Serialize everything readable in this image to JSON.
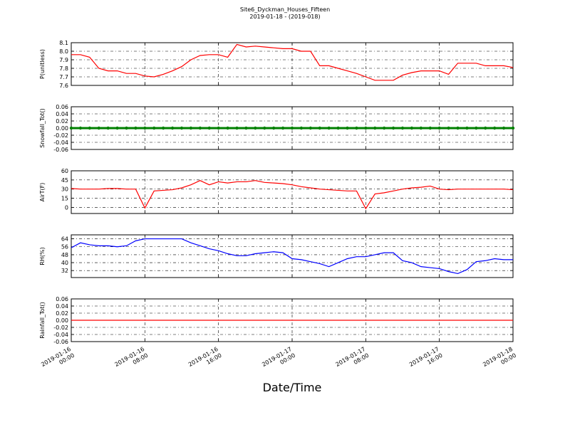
{
  "chart_data": [
    {
      "type": "line",
      "title": "Site6_Dyckman_Houses_Fifteen",
      "subtitle": "2019-01-18 - (2019-018)",
      "ylabel": "P(unitless)",
      "color": "#ff0000",
      "grid": true,
      "xlim": [
        "2019-01-16 00:00",
        "2019-01-18 00:00"
      ],
      "ylim": [
        7.6,
        8.1
      ],
      "yticks": [
        7.6,
        7.7,
        7.8,
        7.9,
        {
          "value": 8,
          "label": "8.0"
        },
        8.1
      ],
      "x": [
        "2019-01-16 00:00",
        "2019-01-16 01:00",
        "2019-01-16 02:00",
        "2019-01-16 03:00",
        "2019-01-16 04:00",
        "2019-01-16 05:00",
        "2019-01-16 06:00",
        "2019-01-16 07:00",
        "2019-01-16 08:00",
        "2019-01-16 09:00",
        "2019-01-16 10:00",
        "2019-01-16 11:00",
        "2019-01-16 12:00",
        "2019-01-16 13:00",
        "2019-01-16 14:00",
        "2019-01-16 15:00",
        "2019-01-16 16:00",
        "2019-01-16 17:00",
        "2019-01-16 18:00",
        "2019-01-16 19:00",
        "2019-01-16 20:00",
        "2019-01-16 21:00",
        "2019-01-16 22:00",
        "2019-01-16 23:00",
        "2019-01-17 00:00",
        "2019-01-17 01:00",
        "2019-01-17 02:00",
        "2019-01-17 03:00",
        "2019-01-17 04:00",
        "2019-01-17 05:00",
        "2019-01-17 06:00",
        "2019-01-17 07:00",
        "2019-01-17 08:00",
        "2019-01-17 09:00",
        "2019-01-17 10:00",
        "2019-01-17 11:00",
        "2019-01-17 12:00",
        "2019-01-17 13:00",
        "2019-01-17 14:00",
        "2019-01-17 15:00",
        "2019-01-17 16:00",
        "2019-01-17 17:00",
        "2019-01-17 18:00",
        "2019-01-17 19:00",
        "2019-01-17 20:00",
        "2019-01-17 21:00",
        "2019-01-17 22:00",
        "2019-01-17 23:00",
        "2019-01-18 00:00"
      ],
      "values": [
        7.96,
        7.96,
        7.93,
        7.8,
        7.77,
        7.77,
        7.74,
        7.74,
        7.71,
        7.7,
        7.73,
        7.77,
        7.82,
        7.9,
        7.95,
        7.96,
        7.96,
        7.93,
        8.08,
        8.05,
        8.06,
        8.05,
        8.04,
        8.03,
        8.03,
        8.0,
        8.0,
        7.83,
        7.83,
        7.8,
        7.77,
        7.74,
        7.7,
        7.66,
        7.66,
        7.66,
        7.72,
        7.75,
        7.77,
        7.77,
        7.77,
        7.73,
        7.86,
        7.86,
        7.86,
        7.83,
        7.83,
        7.83,
        7.81
      ]
    },
    {
      "type": "line",
      "ylabel": "Snowfall_Tot()",
      "color": "#008000",
      "marker": true,
      "grid": true,
      "xlim": [
        "2019-01-16 00:00",
        "2019-01-18 00:00"
      ],
      "ylim": [
        -0.06,
        0.06
      ],
      "yticks": [
        -0.06,
        -0.04,
        -0.02,
        {
          "value": 0,
          "label": "0.00"
        },
        0.02,
        0.04,
        0.06
      ],
      "x": [
        "2019-01-16 00:00",
        "2019-01-16 01:00",
        "2019-01-16 02:00",
        "2019-01-16 03:00",
        "2019-01-16 04:00",
        "2019-01-16 05:00",
        "2019-01-16 06:00",
        "2019-01-16 07:00",
        "2019-01-16 08:00",
        "2019-01-16 09:00",
        "2019-01-16 10:00",
        "2019-01-16 11:00",
        "2019-01-16 12:00",
        "2019-01-16 13:00",
        "2019-01-16 14:00",
        "2019-01-16 15:00",
        "2019-01-16 16:00",
        "2019-01-16 17:00",
        "2019-01-16 18:00",
        "2019-01-16 19:00",
        "2019-01-16 20:00",
        "2019-01-16 21:00",
        "2019-01-16 22:00",
        "2019-01-16 23:00",
        "2019-01-17 00:00",
        "2019-01-17 01:00",
        "2019-01-17 02:00",
        "2019-01-17 03:00",
        "2019-01-17 04:00",
        "2019-01-17 05:00",
        "2019-01-17 06:00",
        "2019-01-17 07:00",
        "2019-01-17 08:00",
        "2019-01-17 09:00",
        "2019-01-17 10:00",
        "2019-01-17 11:00",
        "2019-01-17 12:00",
        "2019-01-17 13:00",
        "2019-01-17 14:00",
        "2019-01-17 15:00",
        "2019-01-17 16:00",
        "2019-01-17 17:00",
        "2019-01-17 18:00",
        "2019-01-17 19:00",
        "2019-01-17 20:00",
        "2019-01-17 21:00",
        "2019-01-17 22:00",
        "2019-01-17 23:00",
        "2019-01-18 00:00"
      ],
      "values": [
        0,
        0,
        0,
        0,
        0,
        0,
        0,
        0,
        0,
        0,
        0,
        0,
        0,
        0,
        0,
        0,
        0,
        0,
        0,
        0,
        0,
        0,
        0,
        0,
        0,
        0,
        0,
        0,
        0,
        0,
        0,
        0,
        0,
        0,
        0,
        0,
        0,
        0,
        0,
        0,
        0,
        0,
        0,
        0,
        0,
        0,
        0,
        0,
        0
      ]
    },
    {
      "type": "line",
      "ylabel": "AirT(F)",
      "color": "#ff0000",
      "grid": true,
      "xlim": [
        "2019-01-16 00:00",
        "2019-01-18 00:00"
      ],
      "ylim": [
        -10,
        60
      ],
      "yticks": [
        0,
        15,
        30,
        45,
        60
      ],
      "x": [
        "2019-01-16 00:00",
        "2019-01-16 01:00",
        "2019-01-16 02:00",
        "2019-01-16 03:00",
        "2019-01-16 04:00",
        "2019-01-16 05:00",
        "2019-01-16 06:00",
        "2019-01-16 07:00",
        "2019-01-16 08:00",
        "2019-01-16 09:00",
        "2019-01-16 10:00",
        "2019-01-16 11:00",
        "2019-01-16 12:00",
        "2019-01-16 13:00",
        "2019-01-16 14:00",
        "2019-01-16 15:00",
        "2019-01-16 16:00",
        "2019-01-16 17:00",
        "2019-01-16 18:00",
        "2019-01-16 19:00",
        "2019-01-16 20:00",
        "2019-01-16 21:00",
        "2019-01-16 22:00",
        "2019-01-16 23:00",
        "2019-01-17 00:00",
        "2019-01-17 01:00",
        "2019-01-17 02:00",
        "2019-01-17 03:00",
        "2019-01-17 04:00",
        "2019-01-17 05:00",
        "2019-01-17 06:00",
        "2019-01-17 07:00",
        "2019-01-17 08:00",
        "2019-01-17 09:00",
        "2019-01-17 10:00",
        "2019-01-17 11:00",
        "2019-01-17 12:00",
        "2019-01-17 13:00",
        "2019-01-17 14:00",
        "2019-01-17 15:00",
        "2019-01-17 16:00",
        "2019-01-17 17:00",
        "2019-01-17 18:00",
        "2019-01-17 19:00",
        "2019-01-17 20:00",
        "2019-01-17 21:00",
        "2019-01-17 22:00",
        "2019-01-17 23:00",
        "2019-01-18 00:00"
      ],
      "values": [
        31,
        30,
        30,
        30,
        31,
        31,
        30,
        30,
        -1,
        27,
        28,
        29,
        32,
        37,
        44,
        37,
        42,
        40,
        42,
        42,
        44,
        41,
        40,
        39,
        37,
        34,
        32,
        30,
        29,
        28,
        27,
        27,
        -2,
        22,
        24,
        27,
        30,
        32,
        33,
        35,
        30,
        29,
        30,
        30,
        30,
        30,
        30,
        30,
        29
      ]
    },
    {
      "type": "line",
      "ylabel": "RH(%)",
      "color": "#0000ff",
      "grid": true,
      "xlim": [
        "2019-01-16 00:00",
        "2019-01-18 00:00"
      ],
      "ylim": [
        25,
        68
      ],
      "yticks": [
        32,
        40,
        48,
        56,
        64
      ],
      "x": [
        "2019-01-16 00:00",
        "2019-01-16 01:00",
        "2019-01-16 02:00",
        "2019-01-16 03:00",
        "2019-01-16 04:00",
        "2019-01-16 05:00",
        "2019-01-16 06:00",
        "2019-01-16 07:00",
        "2019-01-16 08:00",
        "2019-01-16 09:00",
        "2019-01-16 10:00",
        "2019-01-16 11:00",
        "2019-01-16 12:00",
        "2019-01-16 13:00",
        "2019-01-16 14:00",
        "2019-01-16 15:00",
        "2019-01-16 16:00",
        "2019-01-16 17:00",
        "2019-01-16 18:00",
        "2019-01-16 19:00",
        "2019-01-16 20:00",
        "2019-01-16 21:00",
        "2019-01-16 22:00",
        "2019-01-16 23:00",
        "2019-01-17 00:00",
        "2019-01-17 01:00",
        "2019-01-17 02:00",
        "2019-01-17 03:00",
        "2019-01-17 04:00",
        "2019-01-17 05:00",
        "2019-01-17 06:00",
        "2019-01-17 07:00",
        "2019-01-17 08:00",
        "2019-01-17 09:00",
        "2019-01-17 10:00",
        "2019-01-17 11:00",
        "2019-01-17 12:00",
        "2019-01-17 13:00",
        "2019-01-17 14:00",
        "2019-01-17 15:00",
        "2019-01-17 16:00",
        "2019-01-17 17:00",
        "2019-01-17 18:00",
        "2019-01-17 19:00",
        "2019-01-17 20:00",
        "2019-01-17 21:00",
        "2019-01-17 22:00",
        "2019-01-17 23:00",
        "2019-01-18 00:00"
      ],
      "values": [
        55,
        60,
        58,
        57,
        57,
        56,
        57,
        62,
        64,
        64,
        64,
        64,
        64,
        60,
        57,
        54,
        52,
        49,
        47,
        47,
        49,
        50,
        51,
        50,
        44,
        43,
        41,
        39,
        36,
        40,
        44,
        46,
        46,
        48,
        50,
        50,
        42,
        40,
        36,
        35,
        34,
        31,
        29,
        33,
        41,
        42,
        44,
        43,
        43
      ]
    },
    {
      "type": "line",
      "ylabel": "Rainfall_Tot()",
      "xlabel": "Date/Time",
      "color": "#ff0000",
      "grid": true,
      "xlim": [
        "2019-01-16 00:00",
        "2019-01-18 00:00"
      ],
      "ylim": [
        -0.06,
        0.06
      ],
      "yticks": [
        -0.06,
        -0.04,
        -0.02,
        {
          "value": 0,
          "label": "0.00"
        },
        0.02,
        0.04,
        0.06
      ],
      "xticks": [
        "2019-01-16 00:00",
        "2019-01-16 08:00",
        "2019-01-16 16:00",
        "2019-01-17 00:00",
        "2019-01-17 08:00",
        "2019-01-17 16:00",
        "2019-01-18 00:00"
      ],
      "x": [
        "2019-01-16 00:00",
        "2019-01-16 01:00",
        "2019-01-16 02:00",
        "2019-01-16 03:00",
        "2019-01-16 04:00",
        "2019-01-16 05:00",
        "2019-01-16 06:00",
        "2019-01-16 07:00",
        "2019-01-16 08:00",
        "2019-01-16 09:00",
        "2019-01-16 10:00",
        "2019-01-16 11:00",
        "2019-01-16 12:00",
        "2019-01-16 13:00",
        "2019-01-16 14:00",
        "2019-01-16 15:00",
        "2019-01-16 16:00",
        "2019-01-16 17:00",
        "2019-01-16 18:00",
        "2019-01-16 19:00",
        "2019-01-16 20:00",
        "2019-01-16 21:00",
        "2019-01-16 22:00",
        "2019-01-16 23:00",
        "2019-01-17 00:00",
        "2019-01-17 01:00",
        "2019-01-17 02:00",
        "2019-01-17 03:00",
        "2019-01-17 04:00",
        "2019-01-17 05:00",
        "2019-01-17 06:00",
        "2019-01-17 07:00",
        "2019-01-17 08:00",
        "2019-01-17 09:00",
        "2019-01-17 10:00",
        "2019-01-17 11:00",
        "2019-01-17 12:00",
        "2019-01-17 13:00",
        "2019-01-17 14:00",
        "2019-01-17 15:00",
        "2019-01-17 16:00",
        "2019-01-17 17:00",
        "2019-01-17 18:00",
        "2019-01-17 19:00",
        "2019-01-17 20:00",
        "2019-01-17 21:00",
        "2019-01-17 22:00",
        "2019-01-17 23:00",
        "2019-01-18 00:00"
      ],
      "values": [
        0,
        0,
        0,
        0,
        0,
        0,
        0,
        0,
        0,
        0,
        0,
        0,
        0,
        0,
        0,
        0,
        0,
        0,
        0,
        0,
        0,
        0,
        0,
        0,
        0,
        0,
        0,
        0,
        0,
        0,
        0,
        0,
        0,
        0,
        0,
        0,
        0,
        0,
        0,
        0,
        0,
        0,
        0,
        0,
        0,
        0,
        0,
        0,
        0
      ]
    }
  ]
}
